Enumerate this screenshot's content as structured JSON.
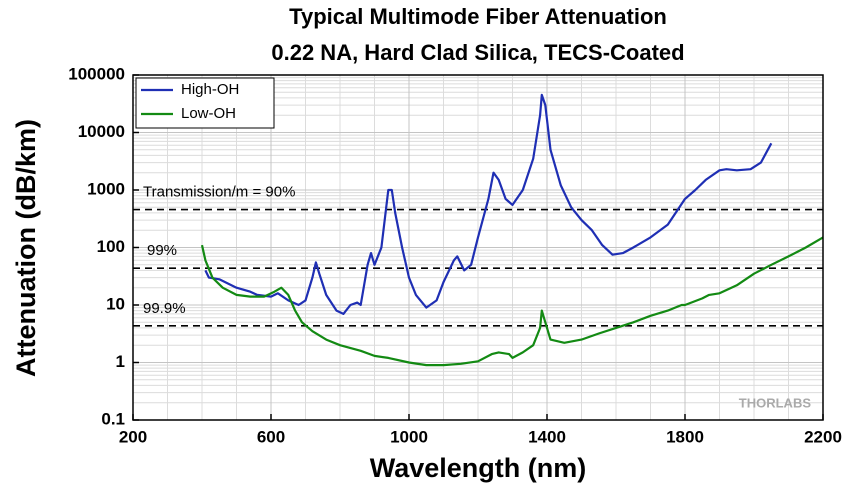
{
  "chart_data": {
    "type": "line",
    "title": "Typical Multimode Fiber Attenuation",
    "subtitle": "0.22 NA, Hard Clad Silica, TECS-Coated",
    "x_label": "Wavelength (nm)",
    "y_label": "Attenuation (dB/km)",
    "xlim": [
      200,
      2200
    ],
    "xticks": [
      200,
      600,
      1000,
      1400,
      1800,
      2200
    ],
    "ylim": [
      0.1,
      100000
    ],
    "yticks": [
      0.1,
      1,
      10,
      100,
      1000,
      10000,
      100000
    ],
    "log_y": true,
    "grid": true,
    "legend": "upper left",
    "watermark": "THORLABS",
    "reference_lines": [
      {
        "value": 457.6,
        "label": "Transmission/m = 90%"
      },
      {
        "value": 43.6,
        "label": "99%"
      },
      {
        "value": 4.35,
        "label": "99.9%"
      }
    ],
    "series": [
      {
        "name": "High-OH",
        "color": "#1f2fb4",
        "x": [
          410,
          420,
          450,
          500,
          540,
          560,
          600,
          620,
          650,
          680,
          700,
          720,
          730,
          740,
          760,
          790,
          810,
          830,
          850,
          860,
          880,
          890,
          900,
          920,
          940,
          950,
          960,
          980,
          1000,
          1020,
          1050,
          1080,
          1100,
          1130,
          1140,
          1160,
          1180,
          1200,
          1230,
          1245,
          1260,
          1280,
          1300,
          1330,
          1360,
          1380,
          1385,
          1395,
          1410,
          1440,
          1470,
          1500,
          1530,
          1560,
          1590,
          1620,
          1650,
          1700,
          1750,
          1800,
          1830,
          1860,
          1900,
          1920,
          1950,
          1990,
          2020,
          2050
        ],
        "values": [
          40,
          30,
          28,
          20,
          17,
          15,
          14,
          16,
          12,
          10,
          12,
          30,
          55,
          35,
          15,
          8,
          7,
          10,
          11,
          10,
          50,
          80,
          50,
          100,
          1000,
          1000,
          400,
          100,
          30,
          15,
          9,
          12,
          25,
          60,
          70,
          40,
          50,
          150,
          700,
          2000,
          1500,
          700,
          550,
          1000,
          3500,
          20000,
          45000,
          30000,
          5000,
          1200,
          500,
          300,
          200,
          110,
          75,
          80,
          100,
          150,
          250,
          700,
          1000,
          1500,
          2200,
          2300,
          2200,
          2300,
          3000,
          6500
        ]
      },
      {
        "name": "Low-OH",
        "color": "#138a13",
        "x": [
          400,
          410,
          430,
          460,
          500,
          540,
          580,
          610,
          630,
          650,
          670,
          690,
          720,
          760,
          800,
          860,
          900,
          940,
          1000,
          1050,
          1100,
          1150,
          1200,
          1240,
          1260,
          1290,
          1300,
          1330,
          1360,
          1380,
          1385,
          1395,
          1410,
          1450,
          1500,
          1550,
          1600,
          1650,
          1700,
          1750,
          1790,
          1800,
          1850,
          1870,
          1900,
          1950,
          2000,
          2050,
          2100,
          2150,
          2200
        ],
        "values": [
          110,
          60,
          30,
          20,
          15,
          14,
          14,
          17,
          20,
          15,
          8,
          5,
          3.5,
          2.5,
          2,
          1.6,
          1.3,
          1.2,
          1,
          0.9,
          0.9,
          0.95,
          1.05,
          1.4,
          1.5,
          1.4,
          1.2,
          1.5,
          2,
          4,
          8,
          5,
          2.5,
          2.2,
          2.5,
          3.2,
          4,
          5,
          6.5,
          8,
          10,
          10,
          13,
          15,
          16,
          22,
          35,
          50,
          70,
          100,
          150
        ]
      }
    ]
  }
}
